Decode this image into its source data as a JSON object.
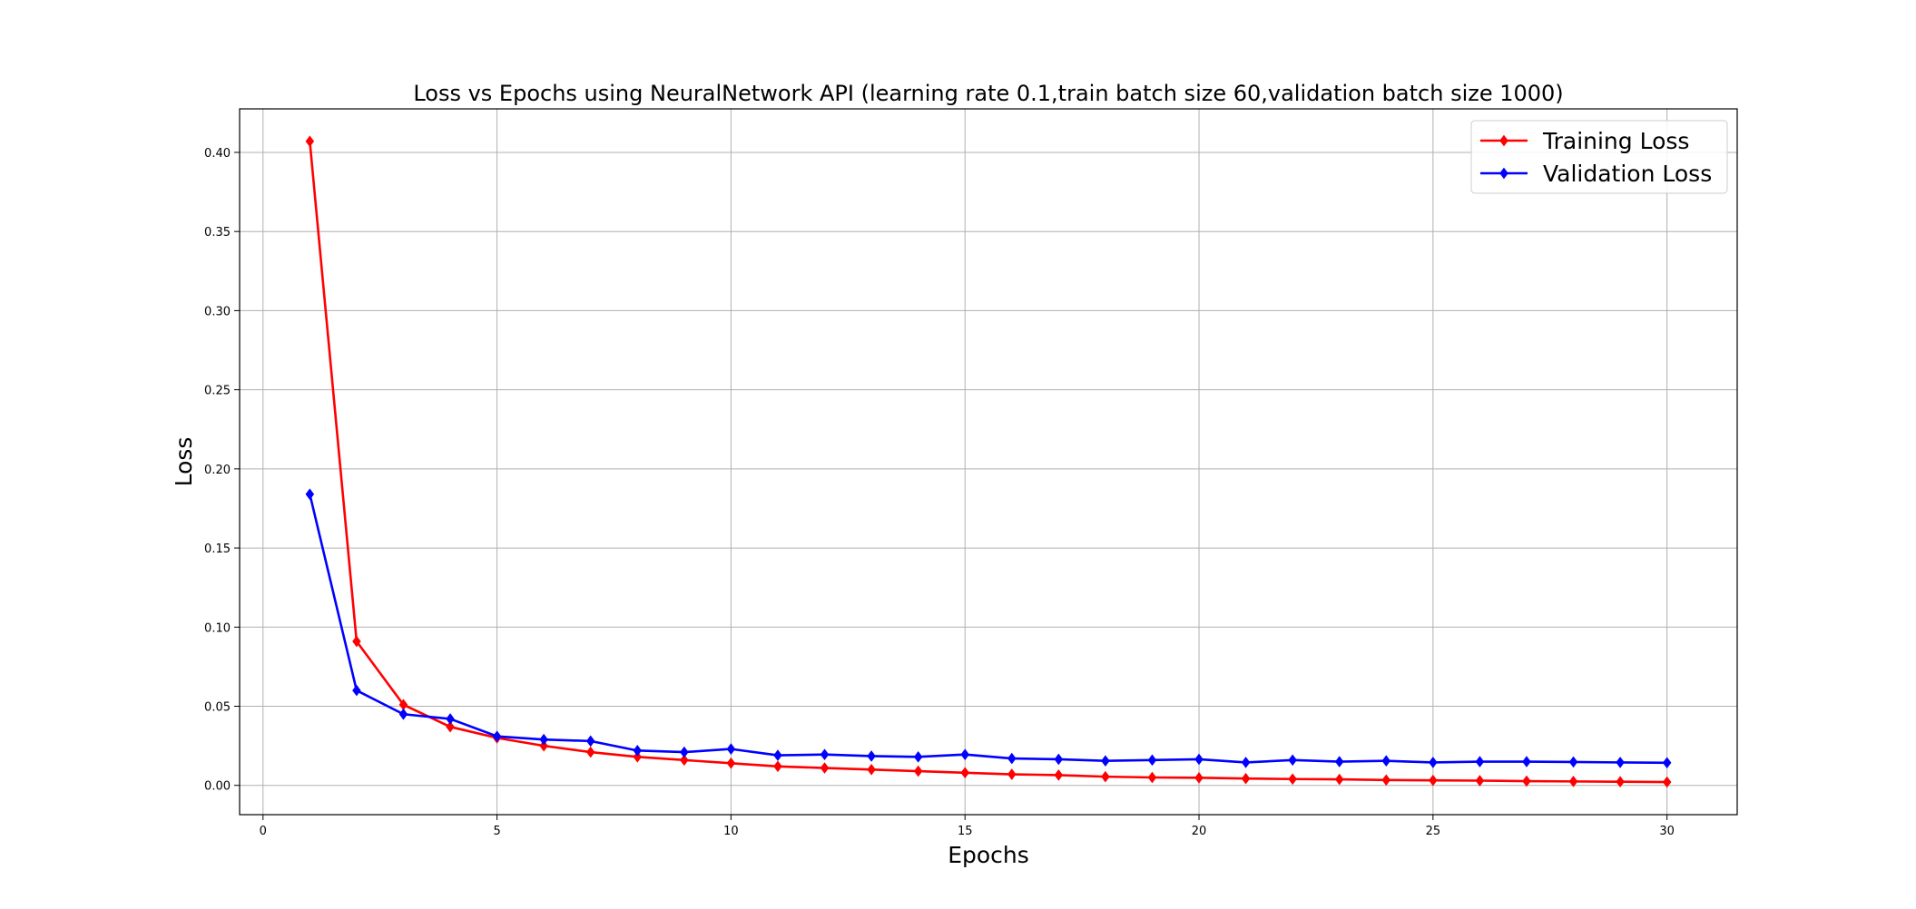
{
  "chart_data": {
    "type": "line",
    "title": "Loss vs Epochs using NeuralNetwork API (learning rate 0.1,train batch size 60,validation batch size 1000)",
    "xlabel": "Epochs",
    "ylabel": "Loss",
    "xlim": [
      -0.5,
      31.5
    ],
    "ylim": [
      -0.0185,
      0.4275
    ],
    "xticks": [
      0,
      5,
      10,
      15,
      20,
      25,
      30
    ],
    "xtick_labels": [
      "0",
      "5",
      "10",
      "15",
      "20",
      "25",
      "30"
    ],
    "yticks": [
      0.0,
      0.05,
      0.1,
      0.15,
      0.2,
      0.25,
      0.3,
      0.35,
      0.4
    ],
    "ytick_labels": [
      "0.00",
      "0.05",
      "0.10",
      "0.15",
      "0.20",
      "0.25",
      "0.30",
      "0.35",
      "0.40"
    ],
    "grid": true,
    "legend_position": "top-right",
    "x": [
      1,
      2,
      3,
      4,
      5,
      6,
      7,
      8,
      9,
      10,
      11,
      12,
      13,
      14,
      15,
      16,
      17,
      18,
      19,
      20,
      21,
      22,
      23,
      24,
      25,
      26,
      27,
      28,
      29,
      30
    ],
    "series": [
      {
        "name": "Training Loss",
        "color": "#ff0000",
        "marker": "diamond",
        "values": [
          0.407,
          0.091,
          0.051,
          0.037,
          0.03,
          0.025,
          0.021,
          0.018,
          0.016,
          0.014,
          0.012,
          0.011,
          0.01,
          0.009,
          0.008,
          0.007,
          0.0065,
          0.0055,
          0.005,
          0.0048,
          0.0043,
          0.004,
          0.0038,
          0.0034,
          0.0032,
          0.003,
          0.0027,
          0.0025,
          0.0023,
          0.0021
        ]
      },
      {
        "name": "Validation Loss",
        "color": "#0000ff",
        "marker": "diamond",
        "values": [
          0.184,
          0.06,
          0.045,
          0.042,
          0.031,
          0.029,
          0.028,
          0.022,
          0.021,
          0.023,
          0.019,
          0.0195,
          0.0185,
          0.018,
          0.0195,
          0.017,
          0.0165,
          0.0155,
          0.016,
          0.0165,
          0.0145,
          0.016,
          0.015,
          0.0155,
          0.0145,
          0.015,
          0.015,
          0.0148,
          0.0145,
          0.0143
        ]
      }
    ]
  }
}
